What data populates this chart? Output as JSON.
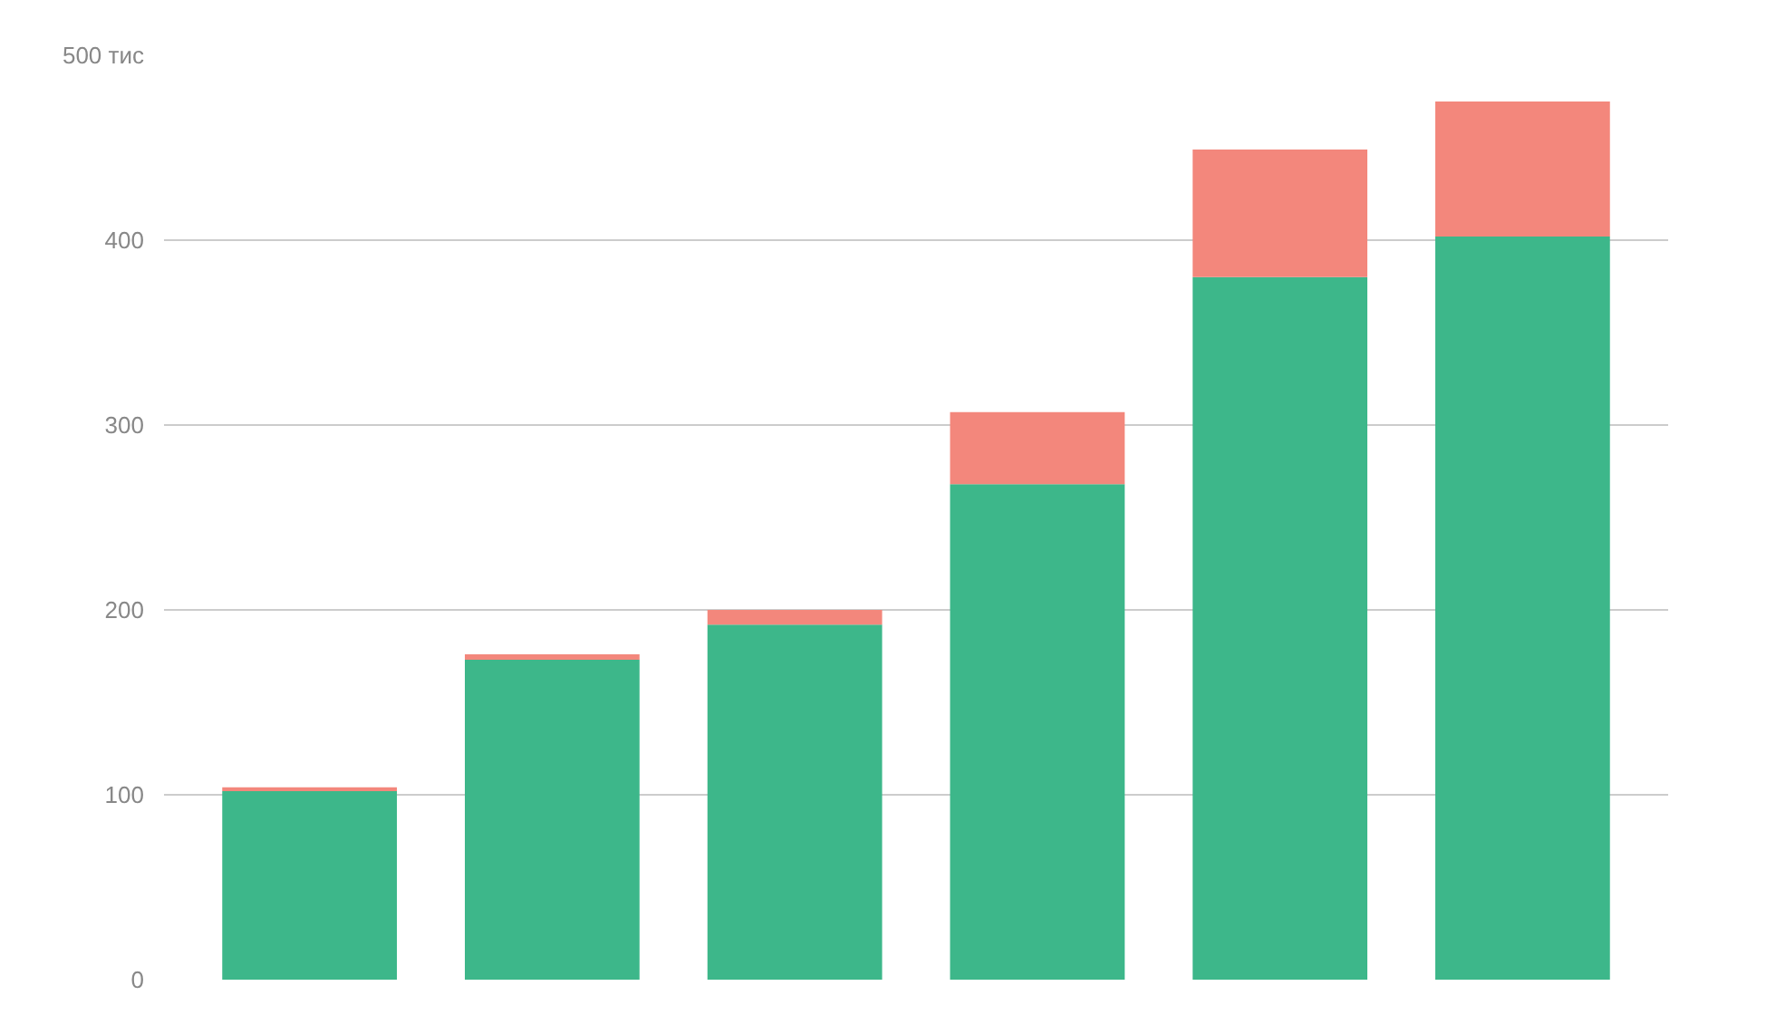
{
  "chart_data": {
    "type": "bar",
    "stacked": true,
    "categories": [
      null,
      null,
      null,
      null,
      null,
      null
    ],
    "series": [
      {
        "color": "#3db78a",
        "values": [
          102,
          173,
          192,
          268,
          380,
          402
        ]
      },
      {
        "color": "#f3877c",
        "values": [
          2,
          3,
          8,
          39,
          69,
          73
        ]
      }
    ],
    "ylim": [
      0,
      500
    ],
    "yticks": [
      0,
      100,
      200,
      300,
      400,
      {
        "value": 500,
        "label": "500 тис"
      }
    ],
    "grid": "y"
  }
}
